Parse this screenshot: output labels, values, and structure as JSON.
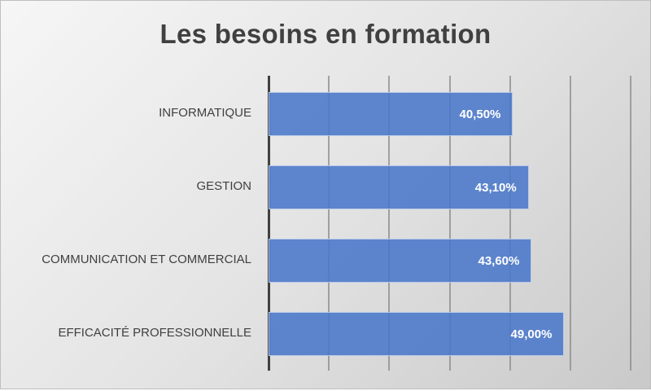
{
  "chart_data": {
    "type": "bar",
    "orientation": "horizontal",
    "title": "Les besoins en formation",
    "categories": [
      "INFORMATIQUE",
      "GESTION",
      "COMMUNICATION ET COMMERCIAL",
      "EFFICACITÉ PROFESSIONNELLE"
    ],
    "values": [
      40.5,
      43.1,
      43.6,
      49.0
    ],
    "value_labels": [
      "40,50%",
      "43,10%",
      "43,60%",
      "49,00%"
    ],
    "xlabel": "",
    "ylabel": "",
    "xlim": [
      0,
      60
    ],
    "gridlines": true,
    "legend": "none",
    "bar_color": "#4a77c9"
  },
  "title": "Les besoins en formation"
}
